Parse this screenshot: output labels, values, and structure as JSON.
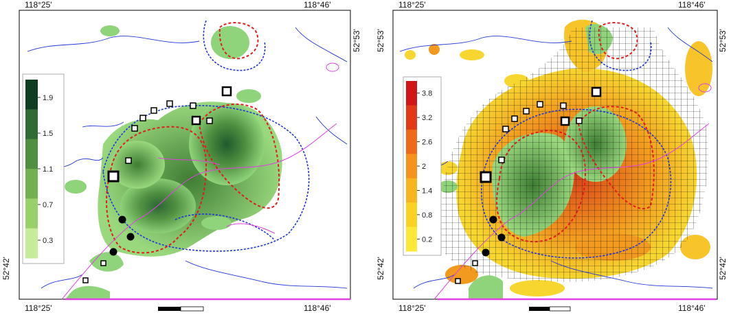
{
  "left_panel": {
    "coords": {
      "top_left": "118°25'",
      "top_right": "118°46'",
      "bottom_left": "118°25'",
      "bottom_right": "118°46'",
      "right_top": "52°53'",
      "left_bottom": "52°42'"
    },
    "legend": {
      "ticks": [
        "1.9",
        "1.5",
        "1.1",
        "0.7",
        "0.3"
      ],
      "colors": [
        "#0f3d22",
        "#2f6b34",
        "#4f8f40",
        "#72b050",
        "#98d06a",
        "#c6ec9a"
      ]
    }
  },
  "right_panel": {
    "coords": {
      "top_left": "118°25'",
      "top_right": "118°46'",
      "bottom_left": "118°25'",
      "bottom_right": "118°46'",
      "right_top": "52°53'",
      "left_bottom": "52°42'"
    },
    "legend": {
      "ticks": [
        "3.8",
        "3.2",
        "2.6",
        "2",
        "1.4",
        "0.8",
        "0.2"
      ],
      "colors": [
        "#d01616",
        "#e23a17",
        "#ee6a1a",
        "#f5931c",
        "#f8b51e",
        "#fbd224",
        "#fde83a"
      ]
    }
  },
  "colors": {
    "green_dark": "#3f7d34",
    "green_light": "#8fd37a",
    "orange": "#f29a1e",
    "yellow": "#f7d630",
    "blue_line": "#1f35d8",
    "red_line": "#e01c1c",
    "magenta_line": "#e040e0"
  }
}
